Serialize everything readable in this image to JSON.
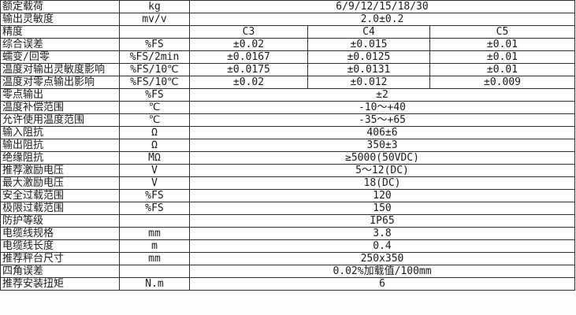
{
  "colors": {
    "border": "#2e2e2e",
    "text": "#1b1b1b",
    "page_background": "#fdfdfd",
    "table_background": "#ffffff"
  },
  "table": {
    "name": "load-cell-specification-table",
    "column_widths": {
      "label": 151,
      "unit": 89,
      "value_c3": 150,
      "value_c4": 155,
      "value_c5": 184
    },
    "rows": [
      {
        "label": "额定载荷",
        "unit": "kg",
        "value": "6/9/12/15/18/30"
      },
      {
        "label": "输出灵敏度",
        "unit": "mv/v",
        "value": "2.0±0.2"
      },
      {
        "label": "精度",
        "unit": "",
        "values": [
          "C3",
          "C4",
          "C5"
        ]
      },
      {
        "label": "综合误差",
        "unit": "%FS",
        "values": [
          "±0.02",
          "±0.015",
          "±0.01"
        ]
      },
      {
        "label": "蠕变/回零",
        "unit": "%FS/2min",
        "values": [
          "±0.0167",
          "±0.0125",
          "±0.01"
        ]
      },
      {
        "label": "温度对输出灵敏度影响",
        "unit": "%FS/10℃",
        "values": [
          "±0.0175",
          "±0.0131",
          "±0.01"
        ]
      },
      {
        "label": "温度对零点输出影响",
        "unit": "%FS/10℃",
        "values": [
          "±0.02",
          "±0.012",
          "±0.009"
        ]
      },
      {
        "label": "零点输出",
        "unit": "%FS",
        "value": "±2"
      },
      {
        "label": "温度补偿范围",
        "unit": "℃",
        "value": "-10〜+40"
      },
      {
        "label": "允许使用温度范围",
        "unit": "℃",
        "value": "-35〜+65"
      },
      {
        "label": "输入阻抗",
        "unit": "Ω",
        "value": "406±6"
      },
      {
        "label": "输出阻抗",
        "unit": "Ω",
        "value": "350±3"
      },
      {
        "label": "绝缘阻抗",
        "unit": "MΩ",
        "value": "≥5000(50VDC)"
      },
      {
        "label": "推荐激励电压",
        "unit": "V",
        "value": "5〜12(DC)"
      },
      {
        "label": "最大激励电压",
        "unit": "V",
        "value": "18(DC)"
      },
      {
        "label": "安全过载范围",
        "unit": "%FS",
        "value": "120"
      },
      {
        "label": "极限过载范围",
        "unit": "%FS",
        "value": "150"
      },
      {
        "label": "防护等级",
        "unit": "",
        "value": "IP65"
      },
      {
        "label": "电缆线规格",
        "unit": "mm",
        "value": "3.8"
      },
      {
        "label": "电缆线长度",
        "unit": "m",
        "value": "0.4"
      },
      {
        "label": "推荐秤台尺寸",
        "unit": "mm",
        "value": "250x350"
      },
      {
        "label": "四角误差",
        "unit": "",
        "value": "0.02%加载值/100mm"
      },
      {
        "label": "推荐安装扭矩",
        "unit": "N.m",
        "value": "6"
      }
    ]
  }
}
